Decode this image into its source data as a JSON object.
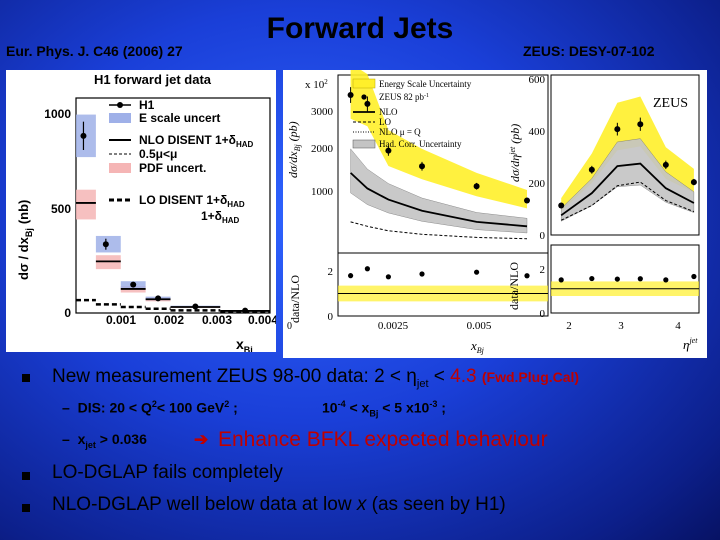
{
  "slide": {
    "title": "Forward Jets",
    "ref_left": "Eur. Phys. J. C46 (2006) 27",
    "ref_right": "ZEUS: DESY-07-102"
  },
  "h1_panel": {
    "title": "H1 forward jet data",
    "ylabel": "dσ / dx",
    "ylabel_sub": "Bj",
    "ylabel_unit": "(nb)",
    "xlabel": "x",
    "xlabel_sub": "Bj",
    "yticks": [
      "1000",
      "500",
      "0"
    ],
    "xticks": [
      "0.001",
      "0.002",
      "0.003",
      "0.004"
    ],
    "legend": {
      "h1": "H1",
      "escale": "E scale uncert",
      "nlo_main": "NLO DISENT 1+δ",
      "nlo_main_sub": "HAD",
      "nlo_scale": "0.5μ",
      "nlo_scale_rest": "<μ",
      "pdf": "PDF uncert.",
      "lo_main": "LO DISENT 1+δ",
      "lo_sub": "HAD",
      "lo_line2": "1+δ",
      "lo_line2_sub": "HAD"
    }
  },
  "zeus_panel": {
    "label": "ZEUS",
    "left_ylabel": "dσ/dx",
    "left_ylabel_sub": "Bj",
    "left_ylabel_unit": "(pb)",
    "left_scale": "x 10",
    "left_scale_exp": "2",
    "left_yticks": [
      "3000",
      "2000",
      "1000"
    ],
    "left_ratio_label": "data/NLO",
    "left_ratio_ticks": [
      "2",
      "0"
    ],
    "left_xticks": [
      "0",
      "0.0025",
      "0.005"
    ],
    "left_xlabel": "x",
    "left_xlabel_sub": "Bj",
    "right_ylabel": "dσ/dη",
    "right_ylabel_sup": "jet",
    "right_ylabel_unit": "(pb)",
    "right_yticks": [
      "600",
      "400",
      "200",
      "0"
    ],
    "right_ratio_label": "data/NLO",
    "right_ratio_ticks": [
      "2",
      "0"
    ],
    "right_xticks": [
      "2",
      "3",
      "4"
    ],
    "right_xlabel": "η",
    "right_xlabel_sup": "jet",
    "legend": {
      "escale": "Energy Scale Uncertainty",
      "data": "ZEUS 82 pb",
      "data_sup": "-1",
      "nlo": "NLO",
      "lo": "LO",
      "nlo_q": "NLO μ",
      "nlo_q_rest": " = Q",
      "had": "Had. Corr. Uncertainty"
    }
  },
  "bullets": {
    "b1_text": "New measurement ZEUS 98-00 data: 2 < η",
    "b1_sub": "jet",
    "b1_lt": " < ",
    "b1_val": "4.3",
    "b1_note": "(Fwd.Plug.Cal)",
    "sub1_dash": "–",
    "sub1_a": "DIS: 20 < Q",
    "sub1_a_sup": "2",
    "sub1_b": "< 100  GeV",
    "sub1_b_sup": "2",
    "sub1_c": " ;",
    "sub1_d": "10",
    "sub1_d_sup": "-4",
    "sub1_e": " < x",
    "sub1_e_sub": "Bj",
    "sub1_f": " < 5 x10",
    "sub1_f_sup": "-3",
    "sub1_g": "  ;",
    "sub2_a": "x",
    "sub2_a_sub": "jet",
    "sub2_b": " > 0.036",
    "sub2_arrow": "➔",
    "sub2_red": "Enhance BFKL expected behaviour",
    "b2": "LO-DGLAP fails completely",
    "b3_a": "NLO-DGLAP well below data at low ",
    "b3_x": "x",
    "b3_b": " (as seen by H1)"
  },
  "chart_data": [
    {
      "type": "bar",
      "title": "H1 forward jet data",
      "xlabel": "xBj",
      "ylabel": "dσ / dxBj (nb)",
      "xlim": [
        0.0001,
        0.004
      ],
      "ylim": [
        0,
        1250
      ],
      "x": [
        0.00025,
        0.0007,
        0.00125,
        0.00175,
        0.0025,
        0.0035
      ],
      "series": [
        {
          "name": "H1",
          "values": [
            1030,
            400,
            165,
            85,
            38,
            14
          ]
        },
        {
          "name": "NLO DISENT 1+δHAD",
          "values": [
            640,
            300,
            140,
            80,
            35,
            12
          ]
        },
        {
          "name": "LO DISENT 1+δHAD",
          "values": [
            75,
            50,
            35,
            25,
            15,
            8
          ]
        }
      ]
    },
    {
      "type": "line",
      "title": "",
      "xlabel": "xBj",
      "ylabel": "dσ/dxBj (pb) x 10^2",
      "xlim": [
        0,
        0.005
      ],
      "ylim": [
        0,
        4000
      ],
      "x": [
        0.0003,
        0.0007,
        0.0012,
        0.002,
        0.0033,
        0.0045
      ],
      "series": [
        {
          "name": "ZEUS 82 pb-1",
          "values": [
            3550,
            3350,
            2300,
            1950,
            1500,
            1180
          ]
        },
        {
          "name": "NLO",
          "values": [
            1800,
            1450,
            1200,
            950,
            700,
            600
          ]
        },
        {
          "name": "LO",
          "values": [
            700,
            600,
            500,
            420,
            350,
            320
          ]
        }
      ]
    },
    {
      "type": "line",
      "title": "",
      "xlabel": "ηjet",
      "ylabel": "dσ/dηjet (pb)",
      "xlim": [
        1.5,
        4.4
      ],
      "ylim": [
        0,
        650
      ],
      "x": [
        1.7,
        2.3,
        2.8,
        3.25,
        3.75,
        4.3
      ],
      "series": [
        {
          "name": "ZEUS 82 pb-1",
          "values": [
            120,
            265,
            430,
            450,
            285,
            215
          ]
        },
        {
          "name": "NLO",
          "values": [
            80,
            170,
            280,
            290,
            190,
            130
          ]
        },
        {
          "name": "LO",
          "values": [
            60,
            120,
            200,
            215,
            140,
            95
          ]
        }
      ]
    }
  ]
}
